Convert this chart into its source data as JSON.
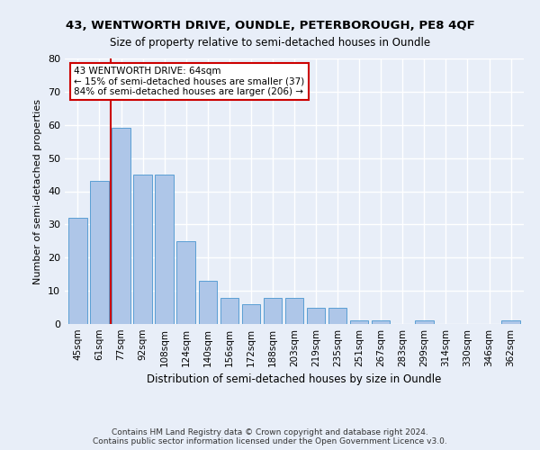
{
  "title1": "43, WENTWORTH DRIVE, OUNDLE, PETERBOROUGH, PE8 4QF",
  "title2": "Size of property relative to semi-detached houses in Oundle",
  "xlabel": "Distribution of semi-detached houses by size in Oundle",
  "ylabel": "Number of semi-detached properties",
  "categories": [
    "45sqm",
    "61sqm",
    "77sqm",
    "92sqm",
    "108sqm",
    "124sqm",
    "140sqm",
    "156sqm",
    "172sqm",
    "188sqm",
    "203sqm",
    "219sqm",
    "235sqm",
    "251sqm",
    "267sqm",
    "283sqm",
    "299sqm",
    "314sqm",
    "330sqm",
    "346sqm",
    "362sqm"
  ],
  "values": [
    32,
    43,
    59,
    45,
    45,
    25,
    13,
    8,
    6,
    8,
    8,
    5,
    5,
    1,
    1,
    0,
    1,
    0,
    0,
    0,
    1
  ],
  "bar_color": "#aec6e8",
  "bar_edge_color": "#5a9fd4",
  "vline_x": 1.5,
  "vline_color": "#cc0000",
  "annotation_text": "43 WENTWORTH DRIVE: 64sqm\n← 15% of semi-detached houses are smaller (37)\n84% of semi-detached houses are larger (206) →",
  "annotation_box_color": "#ffffff",
  "annotation_box_edge_color": "#cc0000",
  "footer": "Contains HM Land Registry data © Crown copyright and database right 2024.\nContains public sector information licensed under the Open Government Licence v3.0.",
  "ylim": [
    0,
    80
  ],
  "background_color": "#e8eef8",
  "grid_color": "#ffffff"
}
